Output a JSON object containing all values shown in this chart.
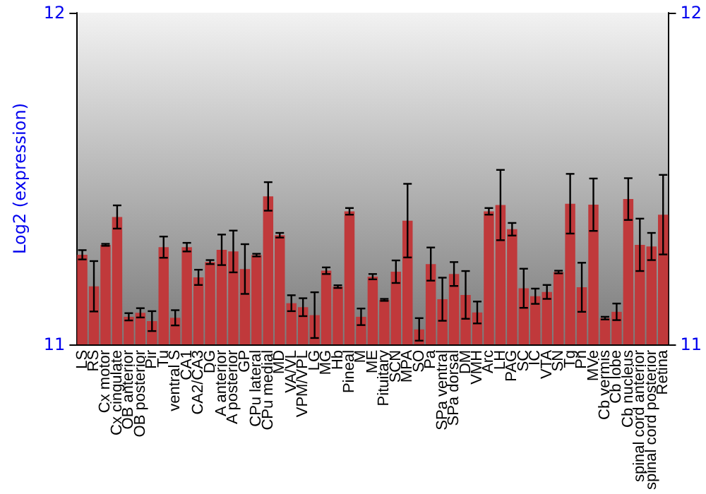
{
  "chart_data": {
    "type": "bar",
    "ylabel": "Log2 (expression)",
    "categories": [
      "LS",
      "RS",
      "Cx motor",
      "Cx cingulate",
      "OB anterior",
      "OB posterior",
      "Pir",
      "Tu",
      "ventral S",
      "CA1",
      "CA2/CA3",
      "DG",
      "A anterior",
      "A posterior",
      "GP",
      "CPu lateral",
      "CPu medial",
      "MD",
      "VA/VL",
      "VPM/VPL",
      "LG",
      "MG",
      "Hb",
      "Pineal",
      "M",
      "ME",
      "Pituitary",
      "SCN",
      "MPA",
      "SO",
      "Pa",
      "SPa ventral",
      "SPa dorsal",
      "DM",
      "VMH",
      "Arc",
      "LH",
      "PAG",
      "SC",
      "IC",
      "VTA",
      "SN",
      "Tg",
      "Pn",
      "MVe",
      "Cb vermis",
      "Cb lobe",
      "Cb nucleus",
      "spinal cord anterior",
      "spinal cord posterior",
      "Retina"
    ],
    "values": [
      11.27,
      11.175,
      11.3,
      11.384,
      11.083,
      11.095,
      11.07,
      11.293,
      11.08,
      11.293,
      11.202,
      11.248,
      11.285,
      11.28,
      11.227,
      11.269,
      11.446,
      11.329,
      11.124,
      11.112,
      11.088,
      11.222,
      11.174,
      11.401,
      11.083,
      11.204,
      11.134,
      11.219,
      11.373,
      11.045,
      11.242,
      11.136,
      11.212,
      11.149,
      11.096,
      11.401,
      11.42,
      11.347,
      11.169,
      11.145,
      11.158,
      11.218,
      11.424,
      11.172,
      11.421,
      11.079,
      11.098,
      11.438,
      11.3,
      11.295,
      11.391
    ],
    "errors": [
      0.014,
      0.076,
      0.003,
      0.035,
      0.011,
      0.014,
      0.03,
      0.032,
      0.023,
      0.013,
      0.023,
      0.006,
      0.046,
      0.063,
      0.075,
      0.004,
      0.043,
      0.007,
      0.024,
      0.027,
      0.069,
      0.01,
      0.004,
      0.01,
      0.025,
      0.008,
      0.003,
      0.034,
      0.111,
      0.034,
      0.05,
      0.065,
      0.036,
      0.072,
      0.033,
      0.01,
      0.106,
      0.019,
      0.059,
      0.023,
      0.021,
      0.004,
      0.09,
      0.074,
      0.079,
      0.004,
      0.025,
      0.063,
      0.079,
      0.041,
      0.12
    ],
    "color": "#c0393b",
    "ylim": [
      11,
      12
    ],
    "yticks": [
      11,
      12
    ],
    "y2lim": [
      11,
      12
    ],
    "y2ticks": [
      11,
      12
    ],
    "grid": false
  }
}
